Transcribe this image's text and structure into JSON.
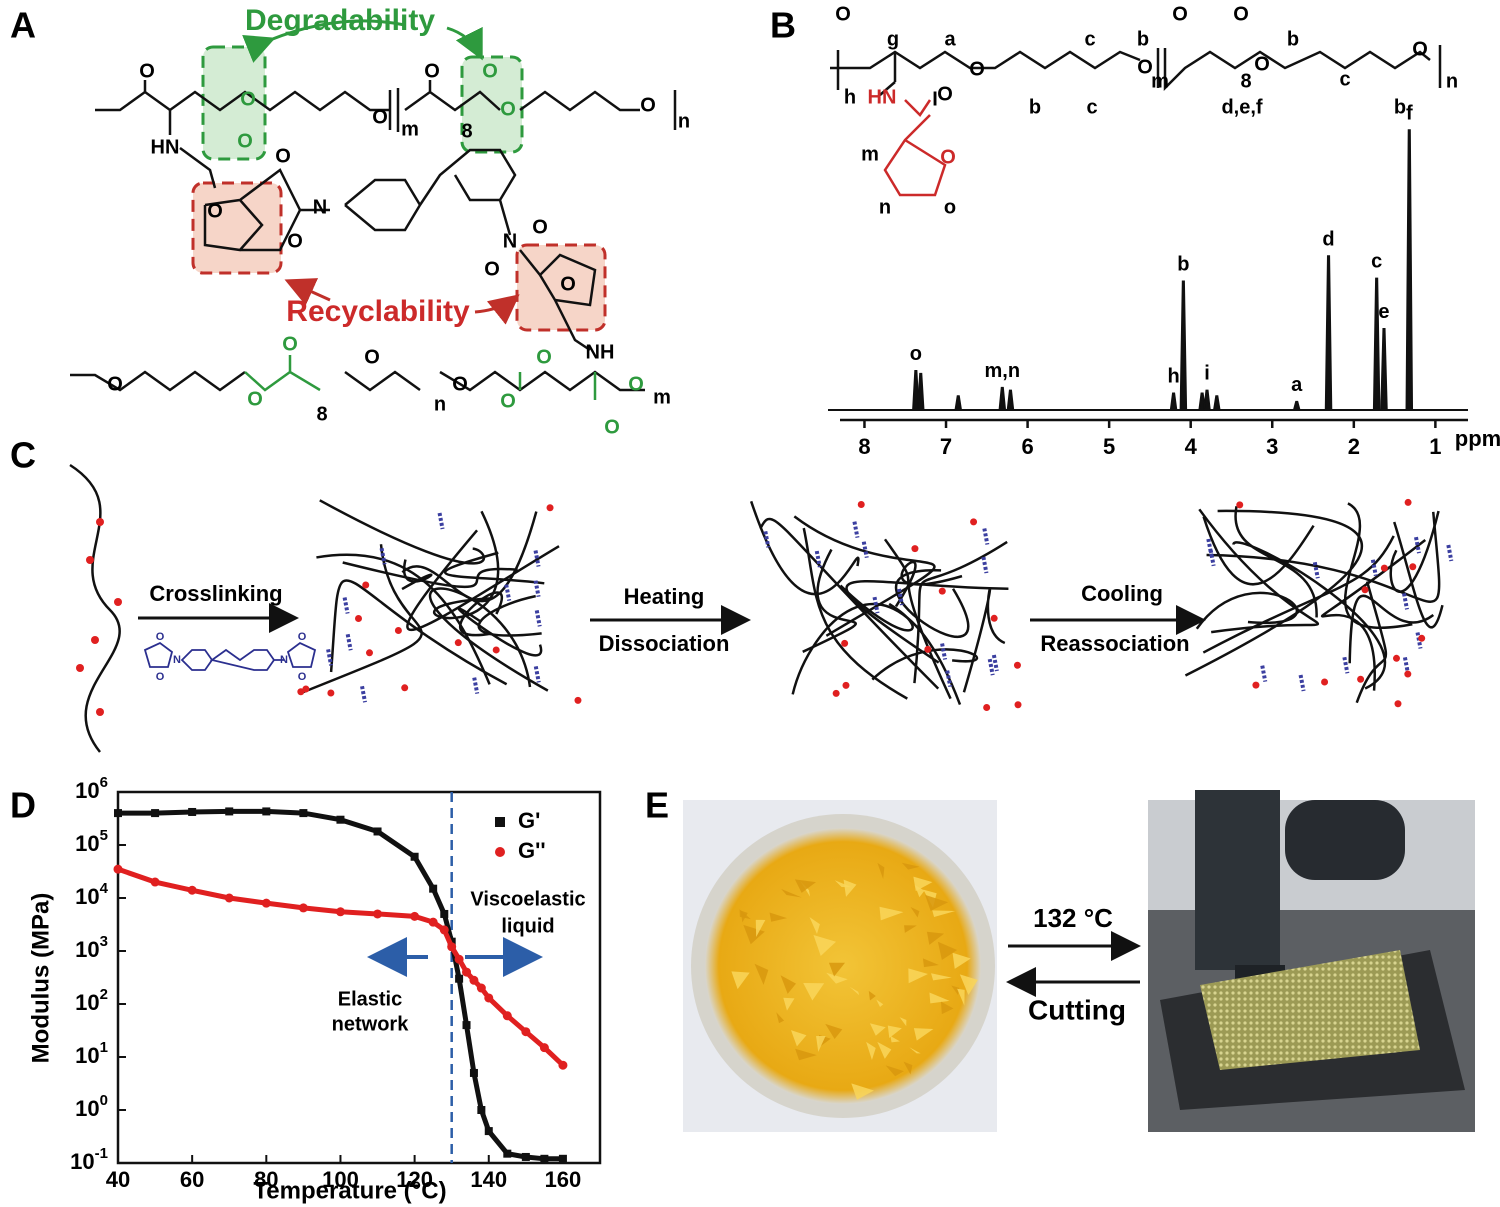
{
  "panel_labels": [
    "A",
    "B",
    "C",
    "D",
    "E"
  ],
  "panel_a": {
    "annotations": [
      "Degradability",
      "Recyclability"
    ],
    "atoms": [
      "O",
      "O",
      "O",
      "O",
      "m",
      "O",
      "8",
      "O",
      "O",
      "O",
      "n",
      "HN",
      "O",
      "N",
      "O",
      "O",
      "O",
      "N",
      "O",
      "O",
      "NH",
      "O",
      "O",
      "O",
      "O",
      "8",
      "n",
      "O",
      "O",
      "O",
      "O",
      "O",
      "m"
    ]
  },
  "panel_b": {
    "atoms": [
      "O",
      "g",
      "a",
      "O",
      "O",
      "b",
      "c",
      "c",
      "b",
      "O",
      "m",
      "O",
      "O",
      "8",
      "d,e,f",
      "O",
      "b",
      "c",
      "b",
      "O",
      "n",
      "h",
      "HN",
      "I",
      "m",
      "O",
      "n",
      "o"
    ],
    "spectrum": {
      "unit": "ppm",
      "xlim": [
        8.3,
        0.6
      ],
      "xticks": [
        8,
        7,
        6,
        5,
        4,
        3,
        2,
        1
      ],
      "ppm": [
        7.37,
        7.31,
        6.85,
        6.31,
        6.21,
        4.21,
        4.09,
        3.86,
        3.8,
        3.68,
        2.7,
        2.31,
        1.72,
        1.63,
        1.32
      ],
      "intensity": [
        14,
        13,
        5,
        8,
        7,
        6,
        46,
        6,
        7,
        5,
        3,
        55,
        47,
        29,
        100
      ],
      "labels": [
        "o",
        null,
        null,
        "m,n",
        null,
        "h",
        "b",
        null,
        "i",
        null,
        "a",
        "d",
        "c",
        "e",
        "f"
      ]
    }
  },
  "panel_c": {
    "steps": [
      "Crosslinking",
      "Heating",
      "Dissociation",
      "Cooling",
      "Reassociation"
    ],
    "crosslinker_atoms": [
      "N",
      "N",
      "O",
      "O",
      "O",
      "O"
    ]
  },
  "chart_data": {
    "type": "scatter",
    "xlabel": "Temperature (°C)",
    "ylabel": "Modulus (MPa)",
    "x": [
      40,
      50,
      60,
      70,
      80,
      90,
      100,
      110,
      120,
      125,
      128,
      130,
      132,
      134,
      136,
      138,
      140,
      145,
      150,
      155,
      160
    ],
    "series": [
      {
        "name": "G'",
        "color": "#111111",
        "marker": "square",
        "values": [
          400000,
          400000,
          420000,
          430000,
          430000,
          400000,
          300000,
          180000,
          60000,
          15000,
          5000,
          1500,
          300,
          40,
          5,
          1,
          0.4,
          0.15,
          0.13,
          0.12,
          0.12
        ]
      },
      {
        "name": "G''",
        "color": "#e02020",
        "marker": "circle",
        "values": [
          35000,
          20000,
          14000,
          10000,
          8000,
          6500,
          5500,
          5000,
          4500,
          3500,
          2500,
          1200,
          700,
          400,
          280,
          200,
          130,
          60,
          30,
          15,
          7
        ]
      }
    ],
    "xlim": [
      40,
      170
    ],
    "xticks": [
      40,
      60,
      80,
      100,
      120,
      140,
      160
    ],
    "ylim": [
      0.1,
      1000000
    ],
    "log_y": true,
    "yticks": [
      {
        "value": 0.1,
        "label": "10",
        "exponent": "-1"
      },
      {
        "value": 1,
        "label": "10",
        "exponent": "0"
      },
      {
        "value": 10,
        "label": "10",
        "exponent": "1"
      },
      {
        "value": 100,
        "label": "10",
        "exponent": "2"
      },
      {
        "value": 1000,
        "label": "10",
        "exponent": "3"
      },
      {
        "value": 10000,
        "label": "10",
        "exponent": "4"
      },
      {
        "value": 100000,
        "label": "10",
        "exponent": "5"
      },
      {
        "value": 1000000,
        "label": "10",
        "exponent": "6"
      }
    ],
    "vline": 130,
    "legend": "upper right",
    "annotations": [
      [
        "Viscoelastic",
        "liquid"
      ],
      [
        "Elastic",
        "network"
      ]
    ]
  },
  "panel_e": {
    "forward_label": "132 °C",
    "backward_label": "Cutting"
  }
}
